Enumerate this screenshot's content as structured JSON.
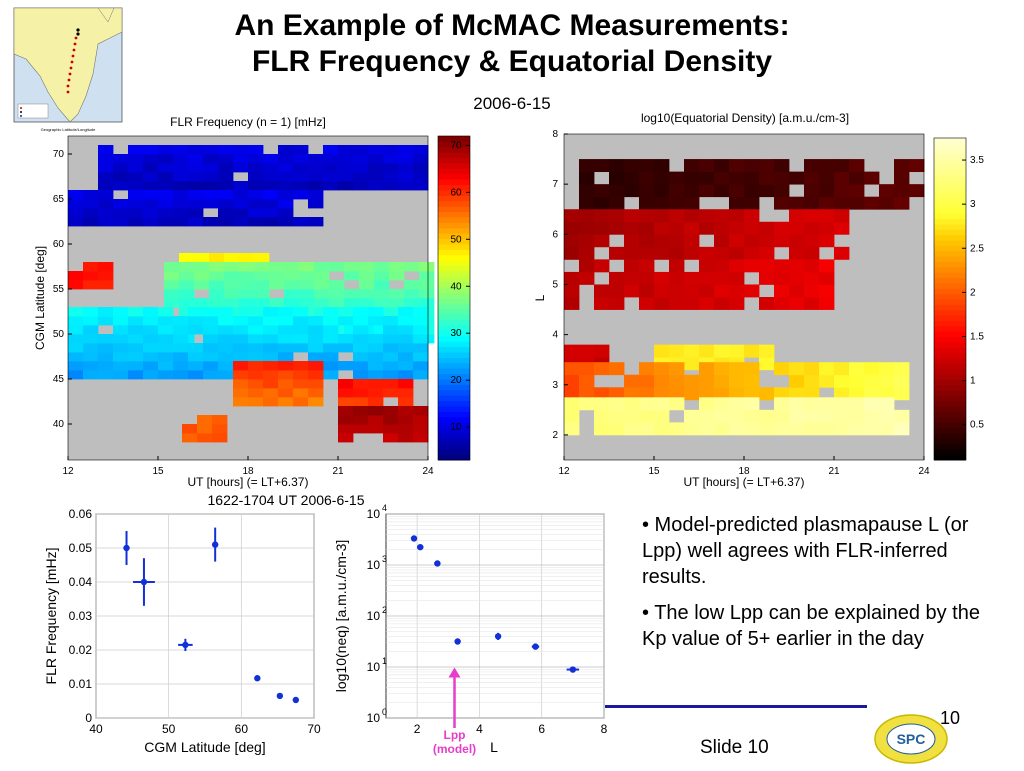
{
  "slide": {
    "title_line1": "An Example of McMAC Measurements:",
    "title_line2": "FLR Frequency & Equatorial Density",
    "date": "2006-6-15",
    "page_number": "10",
    "slide_label": "Slide 10",
    "bullets": [
      "• Model-predicted plasmapause L (or Lpp) well agrees with FLR-inferred results.",
      "• The low Lpp can be explained by the Kp value of 5+ earlier in the day"
    ],
    "logo_text": "SPC",
    "colors": {
      "accent_line": "#1a1aa0",
      "arrow": "#e63ec8",
      "marker": "#1230d8",
      "map_land": "#f5f2a8",
      "map_sea": "#cfe0f0",
      "logo_yellow": "#f0e040"
    }
  },
  "inset_map": {
    "caption": "Geographic Latitude/Longitude"
  },
  "chart_data": [
    {
      "type": "heatmap",
      "title": "FLR Frequency (n = 1) [mHz]",
      "xlabel": "UT [hours] (= LT+6.37)",
      "ylabel": "CGM Latitude [deg]",
      "xlim": [
        12,
        24
      ],
      "ylim": [
        36,
        72
      ],
      "xticks": [
        "12",
        "15",
        "18",
        "21",
        "24"
      ],
      "yticks": [
        "40",
        "45",
        "50",
        "55",
        "60",
        "65",
        "70"
      ],
      "colorbar": {
        "ticks": [
          "10",
          "20",
          "30",
          "40",
          "50",
          "60",
          "70"
        ],
        "range": [
          3,
          72
        ],
        "colormap": "jet"
      }
    },
    {
      "type": "heatmap",
      "title": "log10(Equatorial Density) [a.m.u./cm-3]",
      "xlabel": "UT [hours] (= LT+6.37)",
      "ylabel": "L",
      "xlim": [
        12,
        24
      ],
      "ylim": [
        1.5,
        8
      ],
      "xticks": [
        "12",
        "15",
        "18",
        "21",
        "24"
      ],
      "yticks": [
        "2",
        "3",
        "4",
        "5",
        "6",
        "7",
        "8"
      ],
      "colorbar": {
        "ticks": [
          "0.5",
          "1",
          "1.5",
          "2",
          "2.5",
          "3",
          "3.5"
        ],
        "range": [
          0.1,
          3.75
        ],
        "colormap": "hot"
      }
    },
    {
      "type": "scatter",
      "title": "1622-1704 UT 2006-6-15",
      "xlabel": "CGM Latitude [deg]",
      "ylabel": "FLR Frequency [mHz]",
      "xlim": [
        40,
        70
      ],
      "ylim": [
        0,
        0.06
      ],
      "xticks": [
        "40",
        "50",
        "60",
        "70"
      ],
      "yticks": [
        "0",
        "0.01",
        "0.02",
        "0.03",
        "0.04",
        "0.05",
        "0.06"
      ],
      "grid": true,
      "points": [
        {
          "x": 44.2,
          "y": 0.05,
          "yerr": 0.005,
          "xerr": 0.3
        },
        {
          "x": 46.6,
          "y": 0.04,
          "yerr": 0.007,
          "xerr": 1.5
        },
        {
          "x": 52.3,
          "y": 0.0215,
          "yerr": 0.0018,
          "xerr": 1.0
        },
        {
          "x": 56.4,
          "y": 0.051,
          "yerr": 0.005,
          "xerr": 0.3
        },
        {
          "x": 62.2,
          "y": 0.0117,
          "yerr": 0.0005,
          "xerr": 0.2
        },
        {
          "x": 65.3,
          "y": 0.0065,
          "yerr": 0.0004,
          "xerr": 0.2
        },
        {
          "x": 67.5,
          "y": 0.0053,
          "yerr": 0.0004,
          "xerr": 0.2
        }
      ]
    },
    {
      "type": "scatter",
      "xlabel": "L",
      "ylabel": "log10(neq) [a.m.u./cm-3]",
      "xlim": [
        1,
        8
      ],
      "ylim": [
        0,
        4
      ],
      "yscale": "log",
      "xticks": [
        "2",
        "4",
        "6",
        "8"
      ],
      "yticks": [
        "0",
        "1",
        "2",
        "3",
        "4"
      ],
      "grid": true,
      "annotation": {
        "text_line1": "Lpp",
        "text_line2": "(model)",
        "x": 3.2
      },
      "points": [
        {
          "x": 1.9,
          "y": 3.52,
          "xerr": 0.05,
          "yerr": 0.03
        },
        {
          "x": 2.1,
          "y": 3.35,
          "xerr": 0.1,
          "yerr": 0.03
        },
        {
          "x": 2.65,
          "y": 3.03,
          "xerr": 0.1,
          "yerr": 0.05
        },
        {
          "x": 3.3,
          "y": 1.5,
          "xerr": 0.05,
          "yerr": 0.03
        },
        {
          "x": 4.6,
          "y": 1.6,
          "xerr": 0.05,
          "yerr": 0.07
        },
        {
          "x": 5.8,
          "y": 1.4,
          "xerr": 0.12,
          "yerr": 0.06
        },
        {
          "x": 7.0,
          "y": 0.95,
          "xerr": 0.2,
          "yerr": 0.03
        }
      ]
    }
  ]
}
